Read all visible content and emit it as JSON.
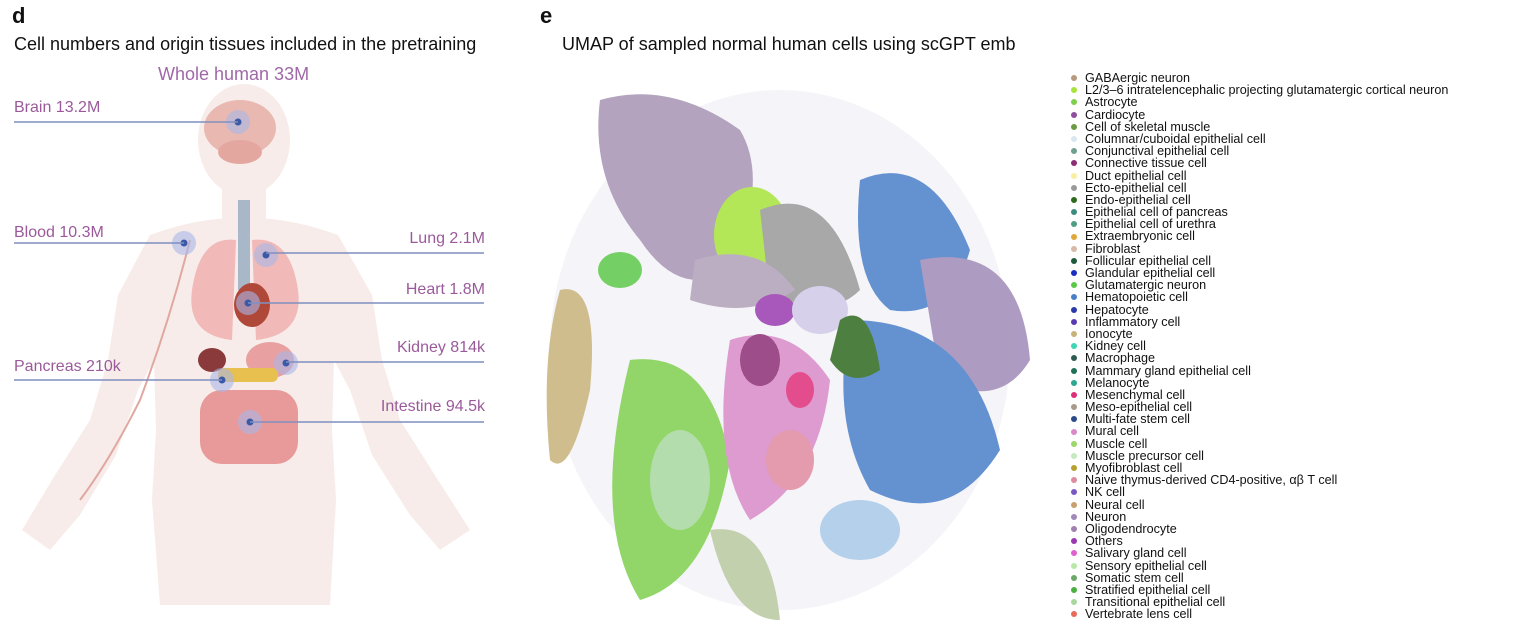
{
  "panel_d": {
    "letter": "d",
    "title": "Cell numbers and origin tissues included in the pretraining",
    "whole_human": "Whole human 33M",
    "callouts": {
      "brain": "Brain 13.2M",
      "blood": "Blood 10.3M",
      "lung": "Lung 2.1M",
      "heart": "Heart 1.8M",
      "pancreas": "Pancreas 210k",
      "kidney": "Kidney 814k",
      "intestine": "Intestine 94.5k"
    }
  },
  "panel_e": {
    "letter": "e",
    "title": "UMAP of sampled normal human cells using scGPT emb",
    "legend": [
      {
        "label": "GABAergic neuron",
        "color": "#b79a7e"
      },
      {
        "label": "L2/3–6 intratelencephalic projecting glutamatergic cortical neuron",
        "color": "#a6e33b"
      },
      {
        "label": "Astrocyte",
        "color": "#7fcf4f"
      },
      {
        "label": "Cardiocyte",
        "color": "#8e4f9e"
      },
      {
        "label": "Cell of skeletal muscle",
        "color": "#6a9a44"
      },
      {
        "label": "Columnar/cuboidal epithelial cell",
        "color": "#d9e7f1"
      },
      {
        "label": "Conjunctival epithelial cell",
        "color": "#6f9f8f"
      },
      {
        "label": "Connective tissue cell",
        "color": "#8c2e76"
      },
      {
        "label": "Duct epithelial cell",
        "color": "#f7f0a0"
      },
      {
        "label": "Ecto-epithelial cell",
        "color": "#9a9a9a"
      },
      {
        "label": "Endo-epithelial cell",
        "color": "#2f6b1f"
      },
      {
        "label": "Epithelial cell of pancreas",
        "color": "#3d8a7e"
      },
      {
        "label": "Epithelial cell of urethra",
        "color": "#4f9e84"
      },
      {
        "label": "Extraembryonic cell",
        "color": "#e0a83a"
      },
      {
        "label": "Fibroblast",
        "color": "#d8b8a6"
      },
      {
        "label": "Follicular epithelial cell",
        "color": "#1d5a3c"
      },
      {
        "label": "Glandular epithelial cell",
        "color": "#1a2ec4"
      },
      {
        "label": "Glutamatergic neuron",
        "color": "#5cc84a"
      },
      {
        "label": "Hematopoietic cell",
        "color": "#4a7fc8"
      },
      {
        "label": "Hepatocyte",
        "color": "#2a3aa8"
      },
      {
        "label": "Inflammatory cell",
        "color": "#5a3ab0"
      },
      {
        "label": "Ionocyte",
        "color": "#c7b27a"
      },
      {
        "label": "Kidney cell",
        "color": "#3fd6b4"
      },
      {
        "label": "Macrophage",
        "color": "#2f5a52"
      },
      {
        "label": "Mammary gland epithelial cell",
        "color": "#1f6f5a"
      },
      {
        "label": "Melanocyte",
        "color": "#2aa890"
      },
      {
        "label": "Mesenchymal cell",
        "color": "#e02f7a"
      },
      {
        "label": "Meso-epithelial cell",
        "color": "#a89a8a"
      },
      {
        "label": "Multi-fate stem cell",
        "color": "#2a4a8a"
      },
      {
        "label": "Mural cell",
        "color": "#d88ac8"
      },
      {
        "label": "Muscle cell",
        "color": "#9ad86a"
      },
      {
        "label": "Muscle precursor cell",
        "color": "#c8e8c0"
      },
      {
        "label": "Myofibroblast cell",
        "color": "#b8a030"
      },
      {
        "label": "Naive thymus-derived CD4-positive, αβ T cell",
        "color": "#e08aa0"
      },
      {
        "label": "NK cell",
        "color": "#7a5ac0"
      },
      {
        "label": "Neural cell",
        "color": "#c8a070"
      },
      {
        "label": "Neuron",
        "color": "#a08ab8"
      },
      {
        "label": "Oligodendrocyte",
        "color": "#a080b0"
      },
      {
        "label": "Others",
        "color": "#9a3ab0"
      },
      {
        "label": "Salivary gland cell",
        "color": "#e060d0"
      },
      {
        "label": "Sensory epithelial cell",
        "color": "#b8e8a8"
      },
      {
        "label": "Somatic stem cell",
        "color": "#6aa86a"
      },
      {
        "label": "Stratified epithelial cell",
        "color": "#4ab040"
      },
      {
        "label": "Transitional epithelial cell",
        "color": "#a8d8a0"
      },
      {
        "label": "Vertebrate lens cell",
        "color": "#e86a5a"
      }
    ]
  }
}
